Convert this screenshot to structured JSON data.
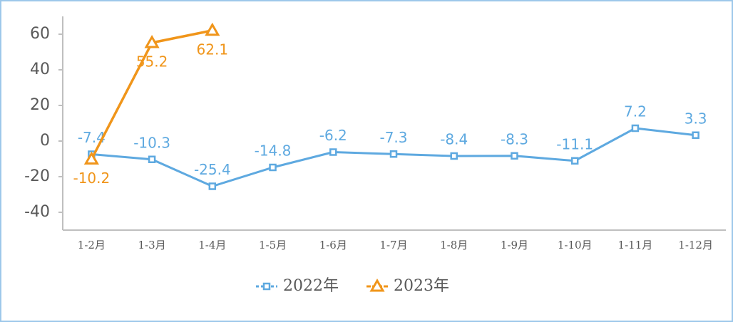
{
  "chart_data": {
    "type": "line",
    "categories": [
      "1-2月",
      "1-3月",
      "1-4月",
      "1-5月",
      "1-6月",
      "1-7月",
      "1-8月",
      "1-9月",
      "1-10月",
      "1-11月",
      "1-12月"
    ],
    "series": [
      {
        "name": "2022年",
        "color": "#5ea9e0",
        "marker": "square",
        "values": [
          -7.4,
          -10.3,
          -25.4,
          -14.8,
          -6.2,
          -7.3,
          -8.4,
          -8.3,
          -11.1,
          7.2,
          3.3
        ]
      },
      {
        "name": "2023年",
        "color": "#f0951a",
        "marker": "triangle",
        "values": [
          -10.2,
          55.2,
          62.1,
          null,
          null,
          null,
          null,
          null,
          null,
          null,
          null
        ]
      }
    ],
    "ylim": [
      -50,
      70
    ],
    "yticks": [
      -40,
      -20,
      0,
      20,
      40,
      60
    ],
    "grid": false,
    "legend": "bottom"
  }
}
